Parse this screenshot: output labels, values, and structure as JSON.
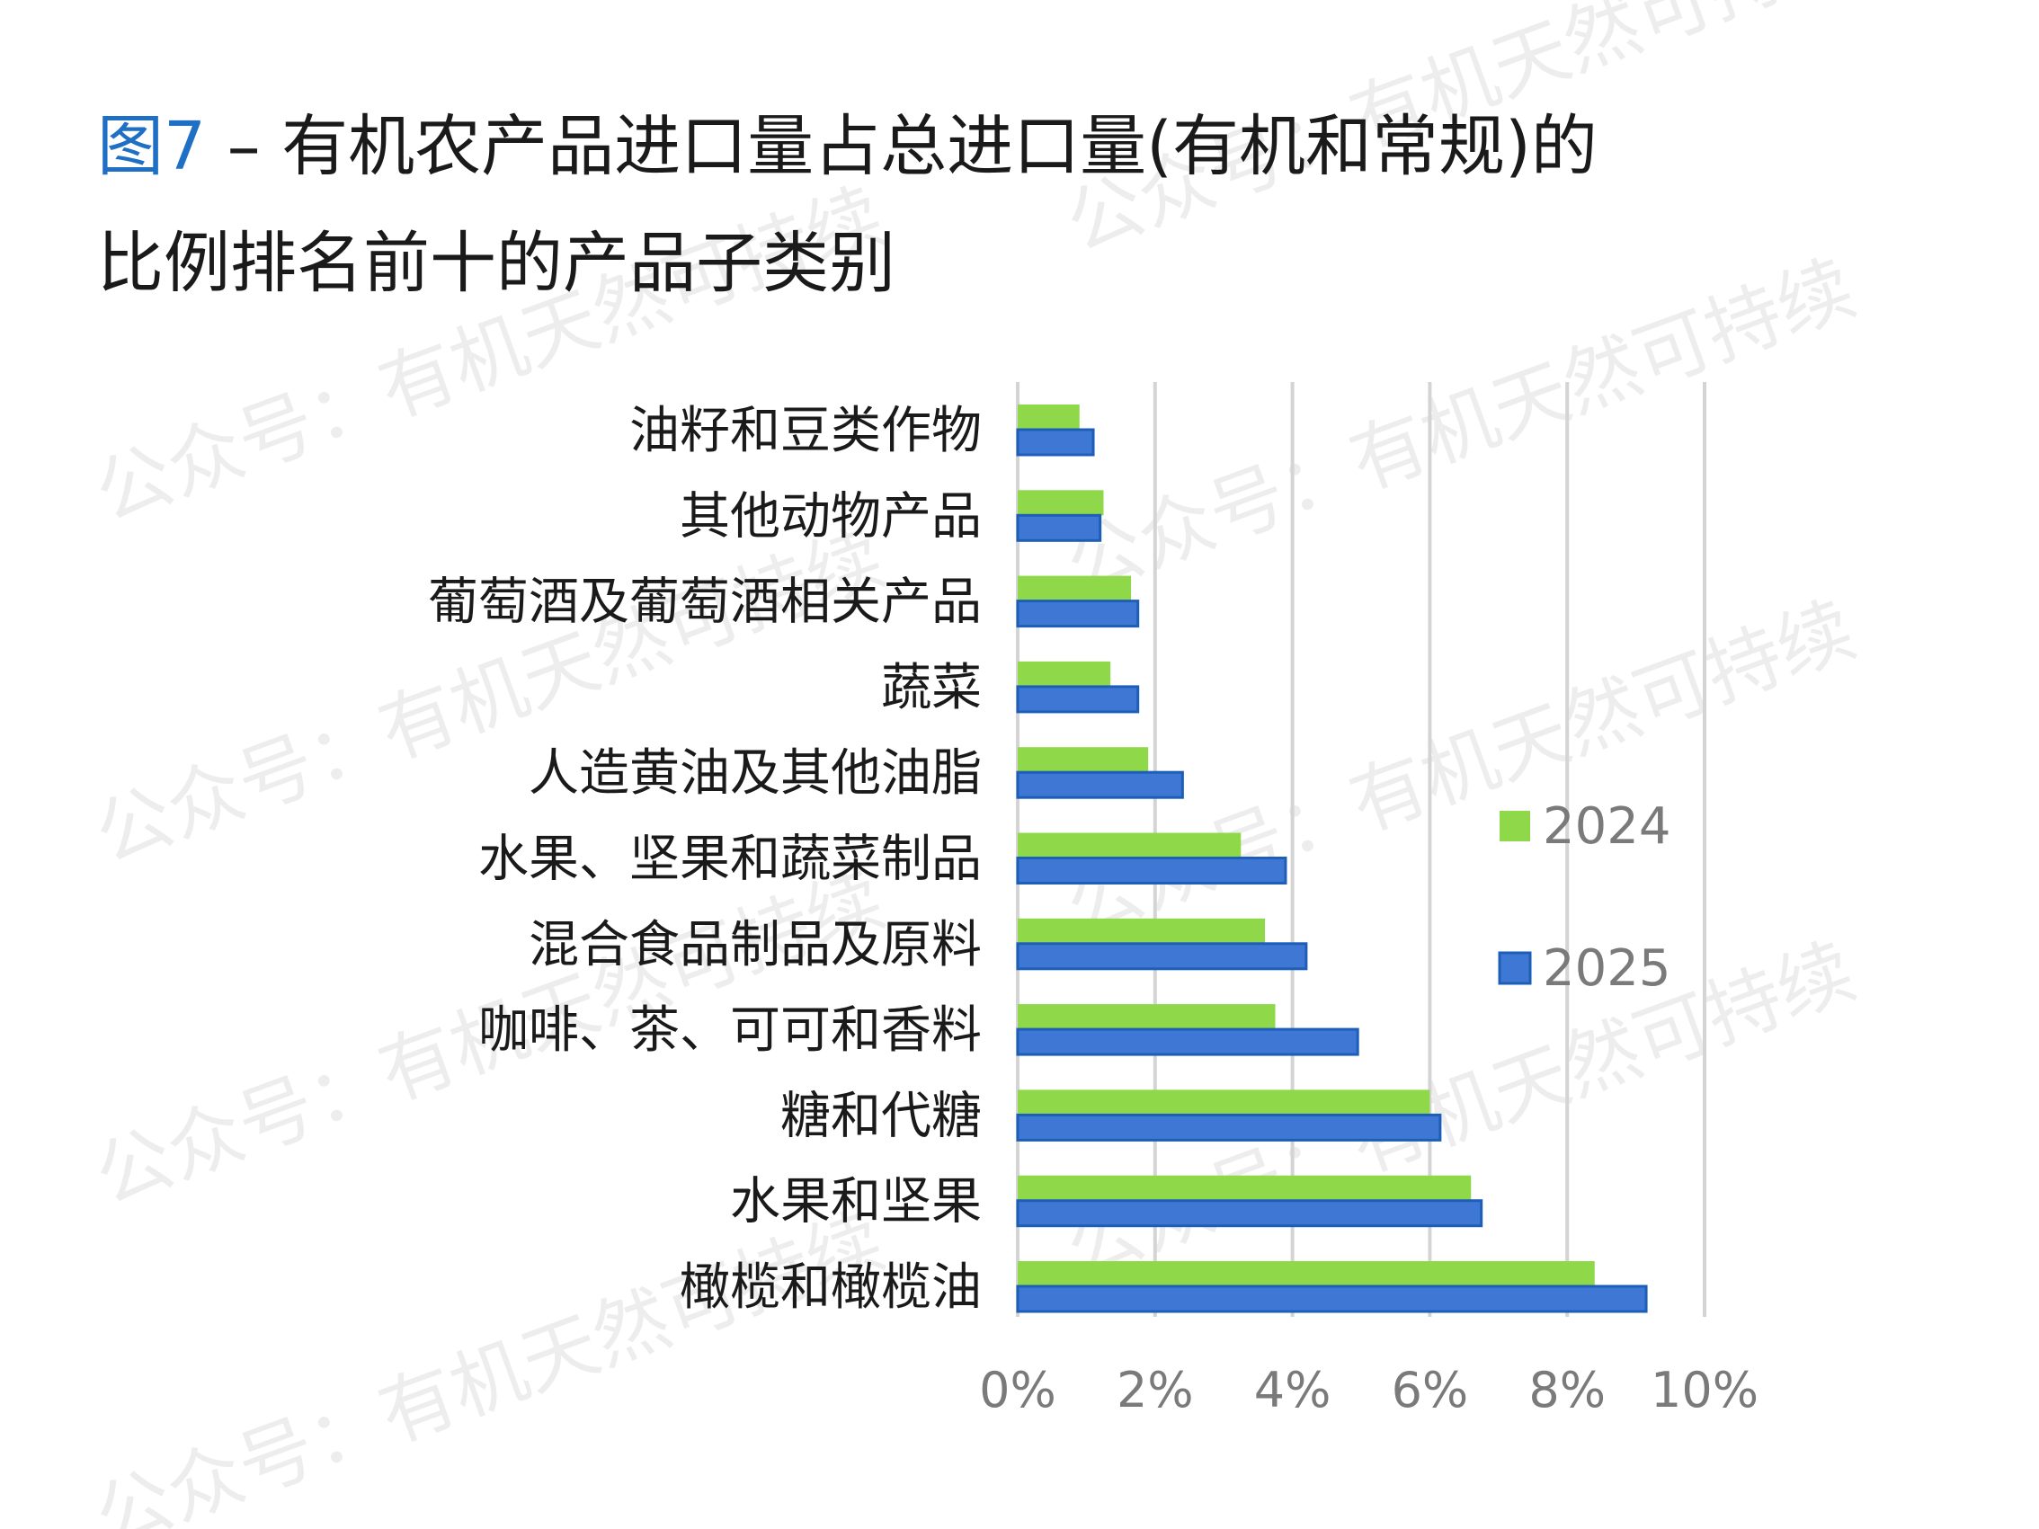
{
  "title": {
    "prefix": "图7",
    "line1_rest": " – 有机农产品进口量占总进口量(有机和常规)的",
    "line2": "比例排名前十的产品子类别"
  },
  "watermark_text": "公众号：有机天然可持续",
  "colors": {
    "series_2024": "#8fd84a",
    "series_2025": "#3f78d4",
    "series_2025_edge": "#1d5fb8",
    "grid": "#d4d4d4",
    "title_prefix": "#1f6fc5"
  },
  "chart_data": {
    "type": "bar",
    "orientation": "horizontal",
    "categories": [
      "油籽和豆类作物",
      "其他动物产品",
      "葡萄酒及葡萄酒相关产品",
      "蔬菜",
      "人造黄油及其他油脂",
      "水果、坚果和蔬菜制品",
      "混合食品制品及原料",
      "咖啡、茶、可可和香料",
      "糖和代糖",
      "水果和坚果",
      "橄榄和橄榄油"
    ],
    "series": [
      {
        "name": "2024",
        "values": [
          0.9,
          1.25,
          1.65,
          1.35,
          1.9,
          3.25,
          3.6,
          3.75,
          6.0,
          6.6,
          8.4
        ]
      },
      {
        "name": "2025",
        "values": [
          1.1,
          1.2,
          1.75,
          1.75,
          2.4,
          3.9,
          4.2,
          4.95,
          6.15,
          6.75,
          9.15
        ]
      }
    ],
    "xlim": [
      0,
      10
    ],
    "xticks": [
      "0%",
      "2%",
      "4%",
      "6%",
      "8%",
      "10%"
    ],
    "grid": true,
    "legend_position": "right"
  }
}
